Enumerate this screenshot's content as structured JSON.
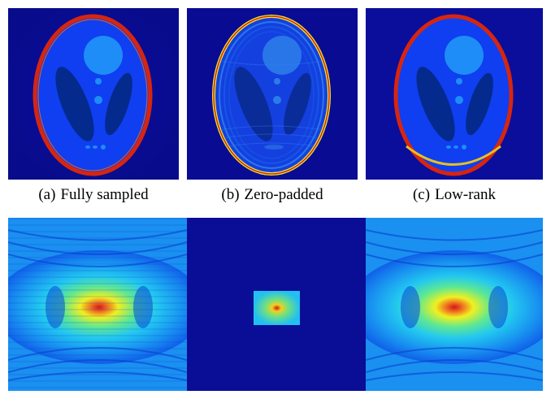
{
  "figure": {
    "captions": [
      {
        "label": "(a)",
        "text": "Fully sampled"
      },
      {
        "label": "(b)",
        "text": "Zero-padded"
      },
      {
        "label": "(c)",
        "text": "Low-rank"
      }
    ]
  },
  "colors": {
    "background_blue": "#0a0d96",
    "phantom_body": "#0f3ff0",
    "phantom_light": "#1e8df8",
    "phantom_dark": "#052a8e",
    "ring_red": "#d8250e",
    "ring_yellow": "#e8e832",
    "spectrum_center": "#d01818",
    "spectrum_yellow": "#f0f020",
    "spectrum_cyan": "#22c8f0"
  }
}
